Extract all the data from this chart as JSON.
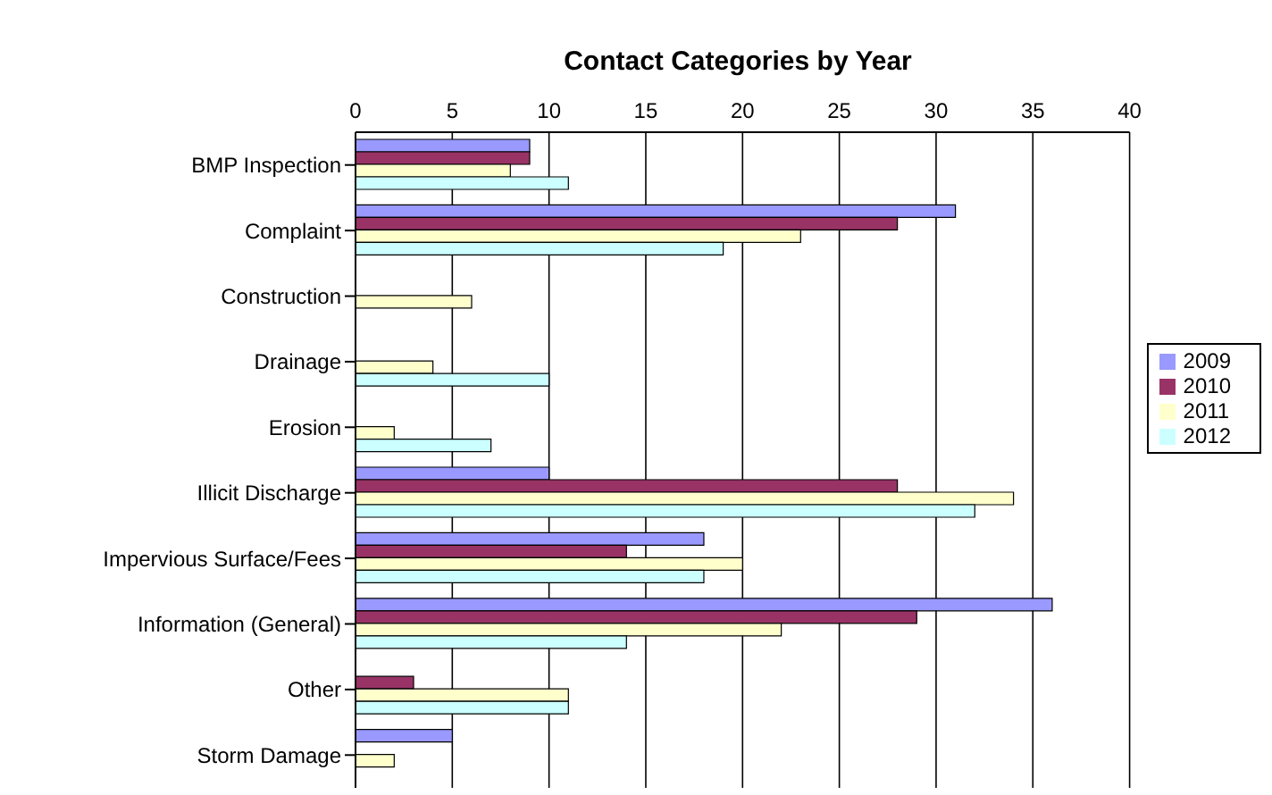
{
  "chart_data": {
    "type": "bar",
    "orientation": "horizontal",
    "title": "Contact Categories by Year",
    "categories": [
      "BMP Inspection",
      "Complaint",
      "Construction",
      "Drainage",
      "Erosion",
      "Illicit Discharge",
      "Impervious Surface/Fees",
      "Information (General)",
      "Other",
      "Storm Damage"
    ],
    "series": [
      {
        "name": "2009",
        "color": "#9999ff",
        "values": [
          9,
          31,
          null,
          null,
          null,
          10,
          18,
          36,
          null,
          5
        ]
      },
      {
        "name": "2010",
        "color": "#993366",
        "values": [
          9,
          28,
          null,
          null,
          null,
          28,
          14,
          29,
          3,
          null
        ]
      },
      {
        "name": "2011",
        "color": "#ffffcc",
        "values": [
          8,
          23,
          6,
          4,
          2,
          34,
          20,
          22,
          11,
          2
        ]
      },
      {
        "name": "2012",
        "color": "#ccffff",
        "values": [
          11,
          19,
          null,
          10,
          7,
          32,
          18,
          14,
          11,
          null
        ]
      }
    ],
    "xlim": [
      0,
      40
    ],
    "xticks": [
      0,
      5,
      10,
      15,
      20,
      25,
      30,
      35,
      40
    ],
    "grid": "x",
    "legend": "right"
  }
}
